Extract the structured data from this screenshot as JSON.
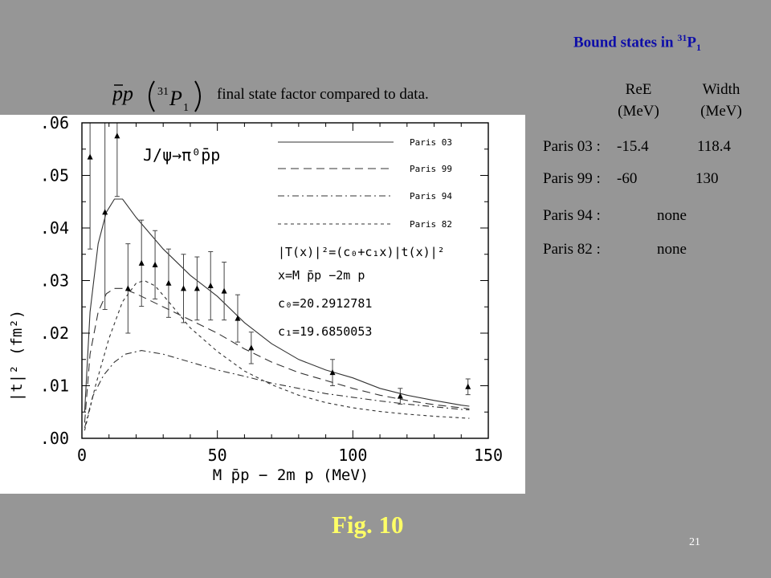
{
  "header": {
    "bound_title_main": "Bound states in ",
    "bound_title_sup": "31",
    "bound_title_p": "P",
    "bound_title_sub": "1",
    "pp_label_sup": "31",
    "pp_label_p": "P",
    "pp_label_sub": "1",
    "caption": "final state factor compared to data."
  },
  "bound_states": {
    "headers": [
      {
        "line1": "ReE",
        "line2": "(MeV)"
      },
      {
        "line1": "Width",
        "line2": "(MeV)"
      }
    ],
    "rows": [
      {
        "label": "Paris 03 :",
        "re": "-15.4",
        "width": "118.4"
      },
      {
        "label": "Paris 99 :",
        "re": "-60",
        "width": "130"
      },
      {
        "label": "Paris 94 :",
        "re": "",
        "width": "none"
      },
      {
        "label": "Paris 82 :",
        "re": "",
        "width": "none"
      }
    ]
  },
  "footer": {
    "figure_label": "Fig. 10",
    "page_number": "21"
  },
  "chart_data": {
    "type": "line",
    "ylabel": "|t|² (fm²)",
    "xlabel": "M p̄p − 2m p (MeV)",
    "xlim": [
      0,
      150
    ],
    "ylim": [
      0,
      0.06
    ],
    "x_ticks": [
      "0",
      "50",
      "100",
      "150"
    ],
    "y_ticks": [
      ".00",
      ".01",
      ".02",
      ".03",
      ".04",
      ".05",
      ".06"
    ],
    "reaction_label": "J/ψ→π⁰p̄p",
    "formula_lines": [
      "|T(x)|²=(c₀+c₁x)|t(x)|²",
      "x=M p̄p −2m p",
      "c₀=20.2912781",
      "c₁=19.6850053"
    ],
    "legend_placement": "top-right",
    "series": [
      {
        "name": "Paris 03",
        "style": "solid",
        "points": [
          [
            1,
            0.005
          ],
          [
            3,
            0.024
          ],
          [
            6,
            0.037
          ],
          [
            9,
            0.043
          ],
          [
            12,
            0.0455
          ],
          [
            15,
            0.0455
          ],
          [
            20,
            0.042
          ],
          [
            30,
            0.036
          ],
          [
            40,
            0.031
          ],
          [
            50,
            0.027
          ],
          [
            60,
            0.022
          ],
          [
            70,
            0.018
          ],
          [
            80,
            0.015
          ],
          [
            90,
            0.013
          ],
          [
            100,
            0.0115
          ],
          [
            110,
            0.0095
          ],
          [
            120,
            0.0082
          ],
          [
            130,
            0.0072
          ],
          [
            140,
            0.0063
          ],
          [
            143,
            0.0061
          ]
        ]
      },
      {
        "name": "Paris 99",
        "style": "longdash",
        "points": [
          [
            1,
            0.003
          ],
          [
            3,
            0.016
          ],
          [
            6,
            0.024
          ],
          [
            9,
            0.0275
          ],
          [
            12,
            0.0285
          ],
          [
            15,
            0.0285
          ],
          [
            20,
            0.0275
          ],
          [
            30,
            0.025
          ],
          [
            40,
            0.0225
          ],
          [
            50,
            0.02
          ],
          [
            60,
            0.017
          ],
          [
            70,
            0.0145
          ],
          [
            80,
            0.0125
          ],
          [
            90,
            0.011
          ],
          [
            100,
            0.0095
          ],
          [
            110,
            0.0082
          ],
          [
            120,
            0.0072
          ],
          [
            130,
            0.0064
          ],
          [
            140,
            0.0058
          ],
          [
            143,
            0.0056
          ]
        ]
      },
      {
        "name": "Paris 94",
        "style": "dashdot",
        "points": [
          [
            1,
            0.002
          ],
          [
            4,
            0.008
          ],
          [
            8,
            0.012
          ],
          [
            12,
            0.0145
          ],
          [
            16,
            0.016
          ],
          [
            22,
            0.0167
          ],
          [
            30,
            0.016
          ],
          [
            40,
            0.0145
          ],
          [
            50,
            0.013
          ],
          [
            60,
            0.0118
          ],
          [
            70,
            0.0105
          ],
          [
            80,
            0.0095
          ],
          [
            90,
            0.0085
          ],
          [
            100,
            0.0078
          ],
          [
            110,
            0.0071
          ],
          [
            120,
            0.0065
          ],
          [
            130,
            0.006
          ],
          [
            140,
            0.0055
          ],
          [
            143,
            0.0054
          ]
        ]
      },
      {
        "name": "Paris 82",
        "style": "shortdash",
        "points": [
          [
            1,
            0.0015
          ],
          [
            5,
            0.01
          ],
          [
            10,
            0.019
          ],
          [
            15,
            0.026
          ],
          [
            20,
            0.0295
          ],
          [
            23,
            0.03
          ],
          [
            27,
            0.029
          ],
          [
            32,
            0.026
          ],
          [
            40,
            0.021
          ],
          [
            50,
            0.0165
          ],
          [
            60,
            0.0128
          ],
          [
            70,
            0.0102
          ],
          [
            80,
            0.0082
          ],
          [
            90,
            0.0068
          ],
          [
            100,
            0.0058
          ],
          [
            110,
            0.0051
          ],
          [
            120,
            0.0046
          ],
          [
            130,
            0.0042
          ],
          [
            140,
            0.0039
          ],
          [
            143,
            0.0038
          ]
        ]
      }
    ],
    "data_points": [
      {
        "x": 3,
        "y": 0.0535,
        "err": 0.0175
      },
      {
        "x": 8.5,
        "y": 0.043,
        "err": 0.0185
      },
      {
        "x": 13,
        "y": 0.0575,
        "err": 0.0115
      },
      {
        "x": 17,
        "y": 0.0285,
        "err": 0.0085
      },
      {
        "x": 22,
        "y": 0.0333,
        "err": 0.0082
      },
      {
        "x": 27,
        "y": 0.033,
        "err": 0.0065
      },
      {
        "x": 32,
        "y": 0.0295,
        "err": 0.0065
      },
      {
        "x": 37.5,
        "y": 0.0285,
        "err": 0.0065
      },
      {
        "x": 42.5,
        "y": 0.0285,
        "err": 0.006
      },
      {
        "x": 47.5,
        "y": 0.029,
        "err": 0.0065
      },
      {
        "x": 52.5,
        "y": 0.028,
        "err": 0.0055
      },
      {
        "x": 57.5,
        "y": 0.0228,
        "err": 0.0045
      },
      {
        "x": 62.5,
        "y": 0.0172,
        "err": 0.003
      },
      {
        "x": 92.5,
        "y": 0.0125,
        "err": 0.0025
      },
      {
        "x": 117.5,
        "y": 0.008,
        "err": 0.0015
      },
      {
        "x": 142.5,
        "y": 0.0098,
        "err": 0.0015
      }
    ]
  }
}
